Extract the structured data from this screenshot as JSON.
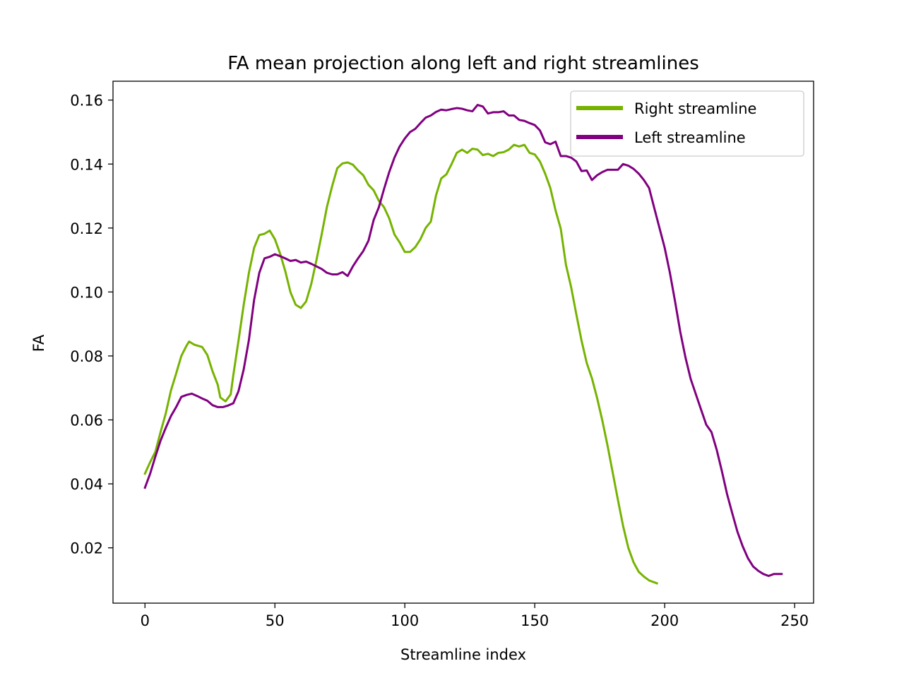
{
  "chart_data": {
    "type": "line",
    "title": "FA mean projection along left and right streamlines",
    "xlabel": "Streamline index",
    "ylabel": "FA",
    "xlim": [
      -12.3,
      257.3
    ],
    "ylim": [
      0.0027,
      0.1659
    ],
    "xticks": [
      0,
      50,
      100,
      150,
      200,
      250
    ],
    "yticks": [
      0.02,
      0.04,
      0.06,
      0.08,
      0.1,
      0.12,
      0.14,
      0.16
    ],
    "xtick_labels": [
      "0",
      "50",
      "100",
      "150",
      "200",
      "250"
    ],
    "ytick_labels": [
      "0.02",
      "0.04",
      "0.06",
      "0.08",
      "0.10",
      "0.12",
      "0.14",
      "0.16"
    ],
    "grid": false,
    "legend_position": "top-right",
    "series": [
      {
        "name": "Right streamline",
        "color": "#76b300",
        "points": [
          [
            0,
            0.0432
          ],
          [
            2,
            0.0468
          ],
          [
            4,
            0.05
          ],
          [
            6,
            0.0562
          ],
          [
            8,
            0.062
          ],
          [
            10,
            0.0692
          ],
          [
            12,
            0.0745
          ],
          [
            14,
            0.08
          ],
          [
            16,
            0.0832
          ],
          [
            17,
            0.0845
          ],
          [
            19,
            0.0835
          ],
          [
            22,
            0.0828
          ],
          [
            24,
            0.0803
          ],
          [
            26,
            0.0752
          ],
          [
            28,
            0.071
          ],
          [
            29,
            0.067
          ],
          [
            31,
            0.0658
          ],
          [
            33,
            0.068
          ],
          [
            34,
            0.074
          ],
          [
            36,
            0.0848
          ],
          [
            38,
            0.096
          ],
          [
            40,
            0.106
          ],
          [
            42,
            0.1138
          ],
          [
            44,
            0.1178
          ],
          [
            46,
            0.1182
          ],
          [
            48,
            0.1192
          ],
          [
            50,
            0.1165
          ],
          [
            52,
            0.112
          ],
          [
            54,
            0.1065
          ],
          [
            56,
            0.0999
          ],
          [
            58,
            0.096
          ],
          [
            60,
            0.095
          ],
          [
            62,
            0.097
          ],
          [
            64,
            0.1025
          ],
          [
            66,
            0.11
          ],
          [
            68,
            0.118
          ],
          [
            70,
            0.1265
          ],
          [
            72,
            0.133
          ],
          [
            74,
            0.1387
          ],
          [
            76,
            0.1402
          ],
          [
            78,
            0.1405
          ],
          [
            80,
            0.1398
          ],
          [
            82,
            0.138
          ],
          [
            84,
            0.1365
          ],
          [
            86,
            0.1335
          ],
          [
            88,
            0.1318
          ],
          [
            90,
            0.1285
          ],
          [
            92,
            0.1265
          ],
          [
            94,
            0.123
          ],
          [
            96,
            0.118
          ],
          [
            98,
            0.1155
          ],
          [
            100,
            0.1125
          ],
          [
            102,
            0.1125
          ],
          [
            104,
            0.114
          ],
          [
            106,
            0.1165
          ],
          [
            108,
            0.12
          ],
          [
            110,
            0.122
          ],
          [
            112,
            0.1302
          ],
          [
            114,
            0.1355
          ],
          [
            116,
            0.1368
          ],
          [
            118,
            0.14
          ],
          [
            120,
            0.1435
          ],
          [
            122,
            0.1445
          ],
          [
            124,
            0.1435
          ],
          [
            126,
            0.1448
          ],
          [
            128,
            0.1445
          ],
          [
            130,
            0.1428
          ],
          [
            132,
            0.1432
          ],
          [
            134,
            0.1425
          ],
          [
            136,
            0.1435
          ],
          [
            138,
            0.1437
          ],
          [
            140,
            0.1445
          ],
          [
            142,
            0.146
          ],
          [
            144,
            0.1455
          ],
          [
            146,
            0.146
          ],
          [
            148,
            0.1435
          ],
          [
            150,
            0.143
          ],
          [
            152,
            0.1408
          ],
          [
            154,
            0.137
          ],
          [
            156,
            0.1325
          ],
          [
            158,
            0.1255
          ],
          [
            160,
            0.1198
          ],
          [
            162,
            0.1085
          ],
          [
            164,
            0.1015
          ],
          [
            166,
            0.093
          ],
          [
            168,
            0.0848
          ],
          [
            170,
            0.0778
          ],
          [
            172,
            0.073
          ],
          [
            174,
            0.0668
          ],
          [
            176,
            0.0598
          ],
          [
            178,
            0.052
          ],
          [
            180,
            0.0435
          ],
          [
            182,
            0.035
          ],
          [
            184,
            0.0268
          ],
          [
            186,
            0.02
          ],
          [
            188,
            0.0155
          ],
          [
            190,
            0.0125
          ],
          [
            192,
            0.011
          ],
          [
            194,
            0.0098
          ],
          [
            196,
            0.0092
          ],
          [
            197,
            0.0089
          ]
        ]
      },
      {
        "name": "Left streamline",
        "color": "#800080",
        "points": [
          [
            0,
            0.0388
          ],
          [
            2,
            0.0432
          ],
          [
            4,
            0.0485
          ],
          [
            6,
            0.0535
          ],
          [
            8,
            0.0575
          ],
          [
            10,
            0.0612
          ],
          [
            12,
            0.064
          ],
          [
            14,
            0.0672
          ],
          [
            16,
            0.0678
          ],
          [
            18,
            0.0682
          ],
          [
            20,
            0.0675
          ],
          [
            22,
            0.0667
          ],
          [
            24,
            0.066
          ],
          [
            26,
            0.0646
          ],
          [
            28,
            0.064
          ],
          [
            30,
            0.064
          ],
          [
            32,
            0.0645
          ],
          [
            34,
            0.0652
          ],
          [
            36,
            0.069
          ],
          [
            38,
            0.0758
          ],
          [
            40,
            0.085
          ],
          [
            42,
            0.0975
          ],
          [
            44,
            0.106
          ],
          [
            46,
            0.1105
          ],
          [
            48,
            0.111
          ],
          [
            50,
            0.1118
          ],
          [
            52,
            0.1112
          ],
          [
            54,
            0.1105
          ],
          [
            56,
            0.1097
          ],
          [
            58,
            0.11
          ],
          [
            60,
            0.1092
          ],
          [
            62,
            0.1095
          ],
          [
            64,
            0.1088
          ],
          [
            66,
            0.108
          ],
          [
            68,
            0.1072
          ],
          [
            70,
            0.106
          ],
          [
            72,
            0.1055
          ],
          [
            74,
            0.1055
          ],
          [
            76,
            0.1062
          ],
          [
            78,
            0.105
          ],
          [
            80,
            0.108
          ],
          [
            82,
            0.1105
          ],
          [
            84,
            0.1128
          ],
          [
            86,
            0.116
          ],
          [
            88,
            0.1225
          ],
          [
            90,
            0.1265
          ],
          [
            92,
            0.1322
          ],
          [
            94,
            0.1375
          ],
          [
            96,
            0.142
          ],
          [
            98,
            0.1455
          ],
          [
            100,
            0.148
          ],
          [
            102,
            0.15
          ],
          [
            104,
            0.151
          ],
          [
            106,
            0.1528
          ],
          [
            108,
            0.1545
          ],
          [
            110,
            0.1552
          ],
          [
            112,
            0.1563
          ],
          [
            114,
            0.157
          ],
          [
            116,
            0.1568
          ],
          [
            118,
            0.1572
          ],
          [
            120,
            0.1575
          ],
          [
            122,
            0.1573
          ],
          [
            124,
            0.1568
          ],
          [
            126,
            0.1565
          ],
          [
            128,
            0.1585
          ],
          [
            130,
            0.158
          ],
          [
            132,
            0.1558
          ],
          [
            134,
            0.1562
          ],
          [
            136,
            0.1562
          ],
          [
            138,
            0.1565
          ],
          [
            140,
            0.1552
          ],
          [
            142,
            0.1552
          ],
          [
            144,
            0.1538
          ],
          [
            146,
            0.1535
          ],
          [
            148,
            0.1528
          ],
          [
            150,
            0.1522
          ],
          [
            152,
            0.1505
          ],
          [
            154,
            0.1468
          ],
          [
            156,
            0.1462
          ],
          [
            158,
            0.147
          ],
          [
            160,
            0.1425
          ],
          [
            162,
            0.1425
          ],
          [
            164,
            0.142
          ],
          [
            166,
            0.1408
          ],
          [
            168,
            0.1378
          ],
          [
            170,
            0.138
          ],
          [
            172,
            0.135
          ],
          [
            174,
            0.1365
          ],
          [
            176,
            0.1375
          ],
          [
            178,
            0.1382
          ],
          [
            180,
            0.1382
          ],
          [
            182,
            0.1382
          ],
          [
            184,
            0.14
          ],
          [
            186,
            0.1395
          ],
          [
            188,
            0.1385
          ],
          [
            190,
            0.137
          ],
          [
            192,
            0.135
          ],
          [
            194,
            0.1325
          ],
          [
            196,
            0.1262
          ],
          [
            198,
            0.12
          ],
          [
            200,
            0.1138
          ],
          [
            202,
            0.106
          ],
          [
            204,
            0.097
          ],
          [
            206,
            0.0875
          ],
          [
            208,
            0.0795
          ],
          [
            210,
            0.0728
          ],
          [
            212,
            0.068
          ],
          [
            214,
            0.0632
          ],
          [
            216,
            0.0585
          ],
          [
            218,
            0.0562
          ],
          [
            220,
            0.0507
          ],
          [
            222,
            0.044
          ],
          [
            224,
            0.0368
          ],
          [
            226,
            0.0308
          ],
          [
            228,
            0.025
          ],
          [
            230,
            0.0205
          ],
          [
            232,
            0.0168
          ],
          [
            234,
            0.0142
          ],
          [
            236,
            0.0128
          ],
          [
            238,
            0.0118
          ],
          [
            240,
            0.0112
          ],
          [
            242,
            0.0118
          ],
          [
            245,
            0.0118
          ]
        ]
      }
    ]
  }
}
